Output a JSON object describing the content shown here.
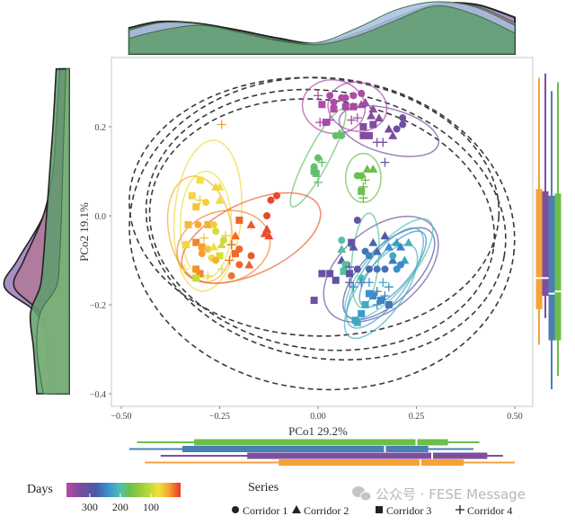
{
  "chart_data": {
    "type": "scatter",
    "xlabel": "PCo1 29.2%",
    "ylabel": "PCo2 19.1%",
    "xlim": [
      -0.52,
      0.55
    ],
    "ylim": [
      -0.43,
      0.35
    ],
    "xticks": [
      {
        "v": -0.5,
        "label": "−0.50"
      },
      {
        "v": -0.25,
        "label": "−0.25"
      },
      {
        "v": 0,
        "label": "0.00"
      },
      {
        "v": 0.25,
        "label": "0.25"
      },
      {
        "v": 0.5,
        "label": "0.50"
      }
    ],
    "yticks": [
      {
        "v": 0.2,
        "label": "0.2"
      },
      {
        "v": 0,
        "label": "0.0"
      },
      {
        "v": -0.2,
        "label": "−0.2"
      },
      {
        "v": -0.4,
        "label": "−0.4"
      }
    ],
    "grid": false,
    "color_scale": {
      "title": "Days",
      "domain": [
        376,
        3
      ],
      "ticks": [
        {
          "v": 300,
          "label": "300"
        },
        {
          "v": 200,
          "label": "200"
        },
        {
          "v": 100,
          "label": "100"
        }
      ],
      "stops": [
        [
          376,
          "#b64aa8"
        ],
        [
          330,
          "#7a4c9e"
        ],
        [
          280,
          "#4a5aa8"
        ],
        [
          235,
          "#3a98d0"
        ],
        [
          200,
          "#52bfae"
        ],
        [
          170,
          "#6cbf4a"
        ],
        [
          110,
          "#b8d838"
        ],
        [
          75,
          "#f2e040"
        ],
        [
          40,
          "#f5a030"
        ],
        [
          3,
          "#e8342a"
        ]
      ]
    },
    "shape_legend": {
      "title": "Series",
      "items": [
        {
          "label": "Corridor 1",
          "shape": "circle"
        },
        {
          "label": "Corridor 2",
          "shape": "triangle"
        },
        {
          "label": "Corridor 3",
          "shape": "square"
        },
        {
          "label": "Corridor 4",
          "shape": "plus"
        }
      ]
    },
    "points_fields": [
      "x",
      "y",
      "days",
      "corridor"
    ],
    "points": [
      [
        0.03,
        0.27,
        370,
        1
      ],
      [
        0.06,
        0.265,
        370,
        1
      ],
      [
        0.09,
        0.27,
        365,
        1
      ],
      [
        0.11,
        0.275,
        365,
        1
      ],
      [
        0.04,
        0.255,
        370,
        1
      ],
      [
        0.12,
        0.255,
        360,
        2
      ],
      [
        0.11,
        0.25,
        360,
        2
      ],
      [
        0.09,
        0.245,
        365,
        3
      ],
      [
        0.07,
        0.245,
        365,
        3
      ],
      [
        0.04,
        0.24,
        370,
        3
      ],
      [
        0.01,
        0.25,
        370,
        3
      ],
      [
        0.02,
        0.21,
        368,
        3
      ],
      [
        0.005,
        0.21,
        368,
        4
      ],
      [
        0.03,
        0.215,
        368,
        4
      ],
      [
        0.0,
        0.27,
        370,
        4
      ],
      [
        0.1,
        0.22,
        360,
        4
      ],
      [
        0.085,
        0.215,
        360,
        4
      ],
      [
        0.14,
        0.24,
        355,
        2
      ],
      [
        0.07,
        0.265,
        370,
        1
      ],
      [
        0.2,
        0.195,
        320,
        1
      ],
      [
        0.215,
        0.205,
        320,
        1
      ],
      [
        0.215,
        0.22,
        320,
        1
      ],
      [
        0.19,
        0.18,
        330,
        2
      ],
      [
        0.18,
        0.195,
        325,
        2
      ],
      [
        0.155,
        0.22,
        335,
        2
      ],
      [
        0.14,
        0.205,
        335,
        3
      ],
      [
        0.13,
        0.18,
        335,
        3
      ],
      [
        0.115,
        0.18,
        335,
        3
      ],
      [
        0.135,
        0.225,
        335,
        2
      ],
      [
        0.15,
        0.165,
        330,
        4
      ],
      [
        0.165,
        0.165,
        330,
        4
      ],
      [
        0.17,
        0.12,
        320,
        4
      ],
      [
        0.115,
        0.2,
        340,
        3
      ],
      [
        0.045,
        0.18,
        180,
        1
      ],
      [
        0.06,
        0.18,
        180,
        1
      ],
      [
        0.055,
        0.185,
        180,
        2
      ],
      [
        0.0,
        0.13,
        180,
        1
      ],
      [
        -0.01,
        0.11,
        182,
        1
      ],
      [
        -0.01,
        0.1,
        182,
        3
      ],
      [
        -0.005,
        0.095,
        182,
        3
      ],
      [
        0.01,
        0.12,
        180,
        4
      ],
      [
        0.0,
        0.075,
        180,
        4
      ],
      [
        0.1,
        0.09,
        170,
        1
      ],
      [
        0.11,
        0.09,
        170,
        1
      ],
      [
        0.125,
        0.105,
        170,
        2
      ],
      [
        0.14,
        0.105,
        170,
        2
      ],
      [
        0.11,
        0.055,
        172,
        3
      ],
      [
        0.12,
        0.08,
        170,
        4
      ],
      [
        0.115,
        0.065,
        170,
        4
      ],
      [
        0.115,
        0.04,
        170,
        4
      ],
      [
        -0.3,
        0.08,
        75,
        3
      ],
      [
        -0.25,
        0.065,
        75,
        2
      ],
      [
        -0.26,
        0.065,
        70,
        2
      ],
      [
        -0.32,
        0.045,
        70,
        3
      ],
      [
        -0.31,
        0.02,
        60,
        3
      ],
      [
        -0.285,
        0.03,
        65,
        1
      ],
      [
        -0.3,
        0.035,
        65,
        4
      ],
      [
        -0.25,
        0.035,
        80,
        2
      ],
      [
        -0.33,
        -0.02,
        55,
        3
      ],
      [
        -0.305,
        -0.02,
        45,
        1
      ],
      [
        -0.28,
        -0.02,
        50,
        3
      ],
      [
        -0.265,
        -0.02,
        65,
        1
      ],
      [
        -0.26,
        -0.035,
        90,
        1
      ],
      [
        -0.29,
        -0.05,
        60,
        4
      ],
      [
        -0.335,
        -0.065,
        70,
        3
      ],
      [
        -0.31,
        -0.06,
        30,
        3
      ],
      [
        -0.295,
        -0.07,
        40,
        3
      ],
      [
        -0.28,
        -0.075,
        60,
        1
      ],
      [
        -0.265,
        -0.07,
        75,
        2
      ],
      [
        -0.245,
        -0.065,
        95,
        2
      ],
      [
        -0.24,
        -0.055,
        100,
        1
      ],
      [
        -0.295,
        -0.085,
        40,
        1
      ],
      [
        -0.27,
        -0.095,
        80,
        1
      ],
      [
        -0.25,
        -0.09,
        90,
        3
      ],
      [
        -0.3,
        -0.13,
        30,
        3
      ],
      [
        -0.31,
        -0.12,
        35,
        3
      ],
      [
        -0.31,
        -0.14,
        100,
        3
      ],
      [
        -0.34,
        -0.12,
        80,
        4
      ],
      [
        -0.28,
        -0.135,
        70,
        4
      ],
      [
        -0.245,
        -0.12,
        80,
        4
      ],
      [
        -0.235,
        -0.045,
        60,
        4
      ],
      [
        -0.26,
        -0.1,
        50,
        1
      ],
      [
        -0.245,
        0.205,
        40,
        4
      ],
      [
        -0.2,
        -0.01,
        20,
        3
      ],
      [
        -0.13,
        0.0,
        10,
        1
      ],
      [
        -0.105,
        0.045,
        10,
        1
      ],
      [
        -0.12,
        0.035,
        10,
        1
      ],
      [
        -0.17,
        -0.02,
        15,
        2
      ],
      [
        -0.13,
        -0.03,
        10,
        2
      ],
      [
        -0.125,
        -0.045,
        10,
        2
      ],
      [
        -0.135,
        -0.04,
        12,
        2
      ],
      [
        -0.21,
        -0.045,
        20,
        2
      ],
      [
        -0.22,
        -0.065,
        22,
        4
      ],
      [
        -0.2,
        -0.075,
        20,
        1
      ],
      [
        -0.21,
        -0.085,
        22,
        3
      ],
      [
        -0.17,
        -0.09,
        15,
        1
      ],
      [
        -0.2,
        -0.11,
        20,
        1
      ],
      [
        -0.22,
        -0.135,
        25,
        1
      ],
      [
        -0.175,
        -0.11,
        18,
        2
      ],
      [
        -0.225,
        -0.1,
        22,
        4
      ],
      [
        0.06,
        -0.055,
        200,
        1
      ],
      [
        0.085,
        -0.065,
        195,
        1
      ],
      [
        0.1,
        -0.01,
        310,
        1
      ],
      [
        0.09,
        -0.07,
        300,
        2
      ],
      [
        0.06,
        -0.075,
        195,
        2
      ],
      [
        0.085,
        -0.06,
        300,
        3
      ],
      [
        0.06,
        -0.1,
        300,
        2
      ],
      [
        0.065,
        -0.125,
        195,
        3
      ],
      [
        0.045,
        -0.145,
        300,
        3
      ],
      [
        0.03,
        -0.13,
        310,
        3
      ],
      [
        0.01,
        -0.13,
        310,
        3
      ],
      [
        -0.01,
        -0.19,
        315,
        3
      ],
      [
        0.08,
        -0.13,
        300,
        3
      ],
      [
        0.11,
        -0.14,
        200,
        1
      ],
      [
        0.1,
        -0.12,
        300,
        1
      ],
      [
        0.12,
        -0.08,
        260,
        1
      ],
      [
        0.13,
        -0.09,
        250,
        1
      ],
      [
        0.15,
        -0.08,
        270,
        2
      ],
      [
        0.14,
        -0.06,
        270,
        2
      ],
      [
        0.17,
        -0.045,
        285,
        2
      ],
      [
        0.18,
        -0.07,
        240,
        2
      ],
      [
        0.2,
        -0.06,
        230,
        2
      ],
      [
        0.21,
        -0.07,
        250,
        2
      ],
      [
        0.22,
        -0.1,
        230,
        2
      ],
      [
        0.19,
        -0.1,
        260,
        2
      ],
      [
        0.2,
        -0.12,
        240,
        1
      ],
      [
        0.17,
        -0.12,
        265,
        1
      ],
      [
        0.15,
        -0.12,
        260,
        1
      ],
      [
        0.13,
        -0.12,
        270,
        1
      ],
      [
        0.21,
        -0.11,
        245,
        1
      ],
      [
        0.23,
        -0.06,
        215,
        2
      ],
      [
        0.19,
        -0.09,
        220,
        1
      ],
      [
        0.09,
        -0.16,
        240,
        4
      ],
      [
        0.11,
        -0.15,
        260,
        4
      ],
      [
        0.13,
        -0.15,
        245,
        4
      ],
      [
        0.15,
        -0.17,
        255,
        4
      ],
      [
        0.17,
        -0.18,
        250,
        4
      ],
      [
        0.14,
        -0.18,
        245,
        3
      ],
      [
        0.16,
        -0.19,
        250,
        3
      ],
      [
        0.18,
        -0.2,
        260,
        3
      ],
      [
        0.12,
        -0.2,
        220,
        3
      ],
      [
        0.11,
        -0.22,
        230,
        3
      ],
      [
        0.1,
        -0.24,
        215,
        3
      ],
      [
        0.095,
        -0.235,
        225,
        3
      ],
      [
        0.13,
        -0.175,
        240,
        3
      ],
      [
        0.15,
        -0.2,
        245,
        4
      ],
      [
        0.08,
        -0.15,
        300,
        4
      ],
      [
        0.165,
        -0.15,
        220,
        4
      ],
      [
        0.18,
        -0.16,
        240,
        4
      ],
      [
        0.07,
        -0.11,
        195,
        3
      ],
      [
        0.08,
        -0.115,
        300,
        4
      ]
    ],
    "group_ellipses_fields": [
      "cx",
      "cy",
      "rx",
      "ry",
      "angle_deg",
      "days"
    ],
    "group_ellipses": [
      [
        0.04,
        0.245,
        0.08,
        0.06,
        -10,
        370
      ],
      [
        0.1,
        0.245,
        0.075,
        0.055,
        -10,
        360
      ],
      [
        0.18,
        0.19,
        0.13,
        0.05,
        -15,
        325
      ],
      [
        0.0,
        0.13,
        0.14,
        0.025,
        62,
        180
      ],
      [
        0.115,
        0.085,
        0.045,
        0.055,
        0,
        170
      ],
      [
        -0.28,
        0.0,
        0.085,
        0.17,
        -5,
        70
      ],
      [
        -0.285,
        -0.02,
        0.065,
        0.12,
        0,
        80
      ],
      [
        -0.3,
        -0.03,
        0.08,
        0.12,
        10,
        45
      ],
      [
        -0.17,
        -0.05,
        0.19,
        0.08,
        25,
        15
      ],
      [
        -0.24,
        -0.07,
        0.12,
        0.08,
        15,
        30
      ],
      [
        0.16,
        -0.12,
        0.17,
        0.09,
        40,
        310
      ],
      [
        0.18,
        -0.13,
        0.15,
        0.06,
        45,
        280
      ],
      [
        0.19,
        -0.12,
        0.12,
        0.04,
        50,
        240
      ],
      [
        0.17,
        -0.14,
        0.15,
        0.05,
        55,
        225
      ],
      [
        0.16,
        -0.17,
        0.14,
        0.05,
        55,
        215
      ],
      [
        0.12,
        -0.1,
        0.12,
        0.03,
        85,
        195
      ],
      [
        0.18,
        -0.12,
        0.16,
        0.05,
        50,
        200
      ]
    ],
    "series_ellipses_fields": [
      "cx",
      "cy",
      "rx",
      "ry",
      "angle_deg"
    ],
    "series_ellipses": [
      [
        0.01,
        -0.04,
        0.49,
        0.35,
        -5
      ],
      [
        0.01,
        -0.02,
        0.44,
        0.28,
        -8
      ],
      [
        -0.01,
        0.02,
        0.47,
        0.29,
        -3
      ],
      [
        0.02,
        -0.02,
        0.46,
        0.3,
        -10
      ]
    ],
    "top_density": {
      "x": [
        -0.48,
        -0.4,
        -0.3,
        -0.2,
        -0.1,
        0,
        0.1,
        0.2,
        0.3,
        0.4,
        0.5
      ],
      "series": [
        {
          "color": "#9a7ab8",
          "values": [
            0.5,
            0.62,
            0.58,
            0.45,
            0.3,
            0.2,
            0.4,
            0.7,
            0.95,
            0.95,
            0.7
          ]
        },
        {
          "color": "#b07898",
          "values": [
            0.48,
            0.6,
            0.56,
            0.42,
            0.27,
            0.2,
            0.4,
            0.7,
            0.95,
            0.92,
            0.6
          ]
        },
        {
          "color": "#a8c0e0",
          "values": [
            0.45,
            0.6,
            0.57,
            0.4,
            0.25,
            0.22,
            0.5,
            0.85,
            1.0,
            0.9,
            0.55
          ]
        },
        {
          "color": "#5e9e6c",
          "values": [
            0.3,
            0.45,
            0.55,
            0.42,
            0.25,
            0.18,
            0.35,
            0.65,
            0.92,
            0.75,
            0.4
          ]
        }
      ]
    },
    "left_density": {
      "y": [
        0.33,
        0.2,
        0.1,
        0,
        -0.1,
        -0.16,
        -0.22,
        -0.3,
        -0.4
      ],
      "series": [
        {
          "color": "#9a7ab8",
          "values": [
            0.15,
            0.2,
            0.25,
            0.4,
            0.8,
            1.0,
            0.5,
            0.3,
            0.2
          ]
        },
        {
          "color": "#b07898",
          "values": [
            0.15,
            0.2,
            0.25,
            0.4,
            0.7,
            0.85,
            0.45,
            0.35,
            0.3
          ]
        },
        {
          "color": "#5e9e6c",
          "values": [
            0.2,
            0.25,
            0.3,
            0.35,
            0.4,
            0.45,
            0.6,
            0.55,
            0.5
          ]
        },
        {
          "color": "#7fb27a",
          "values": [
            0.05,
            0.08,
            0.1,
            0.12,
            0.15,
            0.2,
            0.45,
            0.5,
            0.4
          ]
        }
      ]
    },
    "x_boxplots_fields": [
      "min",
      "q1",
      "median",
      "q3",
      "max",
      "color"
    ],
    "x_boxplots": [
      [
        -0.46,
        -0.315,
        0.25,
        0.33,
        0.41,
        "#6cbf4a"
      ],
      [
        -0.48,
        -0.345,
        0.17,
        0.28,
        0.395,
        "#4a7fb4"
      ],
      [
        -0.4,
        -0.18,
        0.29,
        0.43,
        0.47,
        "#7d4f9e"
      ],
      [
        -0.44,
        -0.1,
        0.26,
        0.37,
        0.5,
        "#f5a23a"
      ]
    ],
    "y_boxplots_fields": [
      "min",
      "q1",
      "median",
      "q3",
      "max",
      "color"
    ],
    "y_boxplots": [
      [
        -0.29,
        -0.21,
        -0.14,
        0.06,
        0.31,
        "#f5a23a"
      ],
      [
        -0.23,
        -0.18,
        -0.14,
        0.055,
        0.32,
        "#7d4f9e"
      ],
      [
        -0.39,
        -0.28,
        -0.175,
        0.045,
        0.28,
        "#4a7fb4"
      ],
      [
        -0.36,
        -0.28,
        -0.17,
        0.05,
        0.3,
        "#6cbf4a"
      ]
    ]
  },
  "watermark": "公众号 · FESE Message"
}
